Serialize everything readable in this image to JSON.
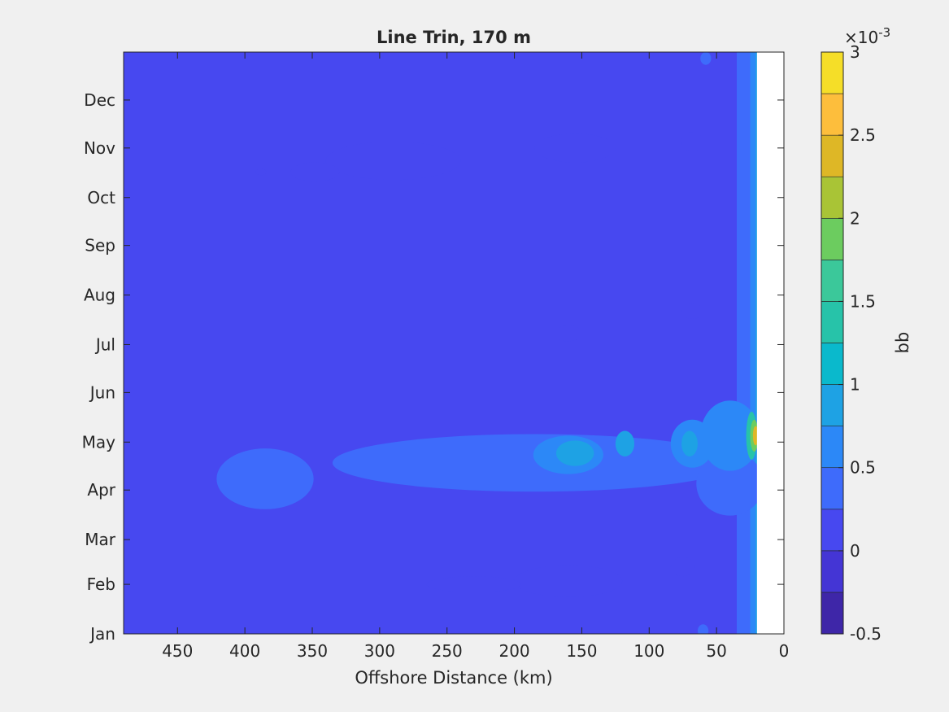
{
  "chart_data": {
    "type": "heatmap",
    "title": "Line Trin, 170 m",
    "xlabel": "Offshore Distance (km)",
    "ylabel": "",
    "x_reversed": true,
    "xlim": [
      490,
      0
    ],
    "x_ticks": [
      450,
      400,
      350,
      300,
      250,
      200,
      150,
      100,
      50,
      0
    ],
    "y_ticks": [
      "Jan",
      "Feb",
      "Mar",
      "Apr",
      "May",
      "Jun",
      "Jul",
      "Aug",
      "Sep",
      "Oct",
      "Nov",
      "Dec"
    ],
    "y_tick_days": [
      1,
      32,
      60,
      91,
      121,
      152,
      182,
      213,
      244,
      274,
      305,
      335
    ],
    "ylim_days": [
      1,
      365
    ],
    "no_data_x_range": [
      20,
      0
    ],
    "colorbar": {
      "label": "bb",
      "exponent_label": "×10",
      "exponent_power": "-3",
      "ticks": [
        "-0.5",
        "0",
        "0.5",
        "1",
        "1.5",
        "2",
        "2.5",
        "3"
      ],
      "levels": [
        -0.5,
        -0.25,
        0,
        0.25,
        0.5,
        0.75,
        1,
        1.25,
        1.5,
        1.75,
        2,
        2.25,
        2.5,
        2.75,
        3
      ],
      "colors": [
        "#3e26a8",
        "#4435d5",
        "#4748f0",
        "#3e6bfb",
        "#2c88f7",
        "#1ea2e4",
        "#0ab9cc",
        "#27c3a9",
        "#3bc89a",
        "#6ccc5f",
        "#a9c436",
        "#deb726",
        "#fdbe3c",
        "#f5de28"
      ]
    },
    "contour_regions": [
      {
        "level": 0,
        "x_center": 290,
        "y_day": 297,
        "x_radius": 50,
        "y_days": 12
      },
      {
        "level": 0,
        "x_center": 348,
        "y_day": 290,
        "x_radius": 18,
        "y_days": 6
      },
      {
        "level": 0,
        "x_center": 388,
        "y_day": 290,
        "x_radius": 4,
        "y_days": 2
      },
      {
        "level": 0,
        "x_center": 155,
        "y_day": 305,
        "x_radius": 30,
        "y_days": 9
      },
      {
        "level": 0,
        "x_center": 68,
        "y_day": 309,
        "x_radius": 8,
        "y_days": 6
      },
      {
        "level": 0,
        "x_center": 160,
        "y_day": 189,
        "x_radius": 10,
        "y_days": 5
      },
      {
        "level": 0,
        "x_center": 68,
        "y_day": 203,
        "x_radius": 8,
        "y_days": 5
      },
      {
        "level": 0,
        "x_center": 160,
        "y_day": 34,
        "x_radius": 40,
        "y_days": 10
      },
      {
        "level": 0,
        "x_center": 230,
        "y_day": 32,
        "x_radius": 35,
        "y_days": 5
      },
      {
        "level": 0,
        "x_center": 75,
        "y_day": 43,
        "x_radius": 9,
        "y_days": 6
      },
      {
        "level": 0.25,
        "x_center": 385,
        "y_day": 98,
        "x_radius": 36,
        "y_days": 19
      },
      {
        "level": 0.25,
        "x_center": 185,
        "y_day": 108,
        "x_radius": 150,
        "y_days": 18
      },
      {
        "level": 0.25,
        "x_center": 40,
        "y_day": 95,
        "x_radius": 25,
        "y_days": 20
      },
      {
        "level": 0.5,
        "x_center": 160,
        "y_day": 113,
        "x_radius": 26,
        "y_days": 12
      },
      {
        "level": 0.5,
        "x_center": 68,
        "y_day": 120,
        "x_radius": 16,
        "y_days": 15
      },
      {
        "level": 0.5,
        "x_center": 40,
        "y_day": 125,
        "x_radius": 22,
        "y_days": 22
      },
      {
        "level": 0.75,
        "x_center": 155,
        "y_day": 114,
        "x_radius": 14,
        "y_days": 8
      },
      {
        "level": 0.75,
        "x_center": 118,
        "y_day": 120,
        "x_radius": 7,
        "y_days": 8
      },
      {
        "level": 0.75,
        "x_center": 70,
        "y_day": 120,
        "x_radius": 6,
        "y_days": 8
      },
      {
        "level": 0.25,
        "x_center": 58,
        "y_day": 361,
        "x_radius": 4,
        "y_days": 4
      },
      {
        "level": 0.25,
        "x_center": 60,
        "y_day": 3,
        "x_radius": 4,
        "y_days": 4
      },
      {
        "level": 1.25,
        "x_center": 24,
        "y_day": 125,
        "x_radius": 4,
        "y_days": 15
      },
      {
        "level": 1.75,
        "x_center": 22,
        "y_day": 125,
        "x_radius": 3,
        "y_days": 10
      },
      {
        "level": 2.25,
        "x_center": 21,
        "y_day": 125,
        "x_radius": 2,
        "y_days": 6
      }
    ],
    "nearshore_band": [
      {
        "level": 0.25,
        "x_from": 35,
        "x_to": 20
      },
      {
        "level": 0.5,
        "x_from": 25,
        "x_to": 20
      },
      {
        "level": 0.75,
        "x_from": 21,
        "x_to": 20
      }
    ]
  }
}
